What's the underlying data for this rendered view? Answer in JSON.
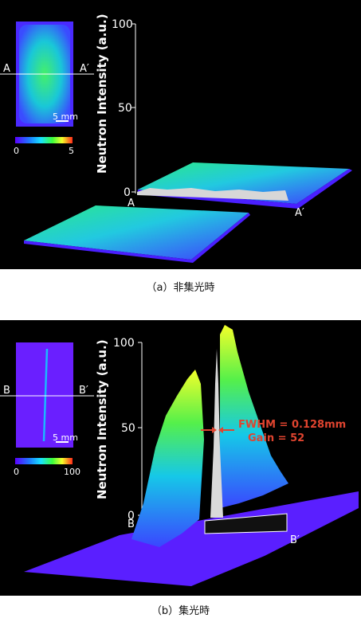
{
  "panel_a": {
    "caption": "（a）非集光時",
    "ylabel": "Neutron Intensity (a.u.)",
    "ticks": [
      "100",
      "50",
      "0"
    ],
    "colorbar": {
      "min": "0",
      "max": "5"
    },
    "scale_bar": "5 mm",
    "line_start": "A",
    "line_end": "A′",
    "profile_start": "A",
    "profile_end": "A′"
  },
  "panel_b": {
    "caption": "（b）集光時",
    "ylabel": "Neutron Intensity (a.u.)",
    "ticks": [
      "100",
      "50",
      "0"
    ],
    "colorbar": {
      "min": "0",
      "max": "100"
    },
    "scale_bar": "5 mm",
    "line_start": "B",
    "line_end": "B′",
    "profile_start": "B",
    "profile_end": "B′",
    "fwhm": "FWHM = 0.128mm",
    "gain": "Gain = 52"
  },
  "colors": {
    "background": "#000000",
    "low": "#5a1fff",
    "mid": "#16b6ff",
    "high": "#2ef07a",
    "peak": "#f7ff2a",
    "annotation": "#e0442f"
  }
}
